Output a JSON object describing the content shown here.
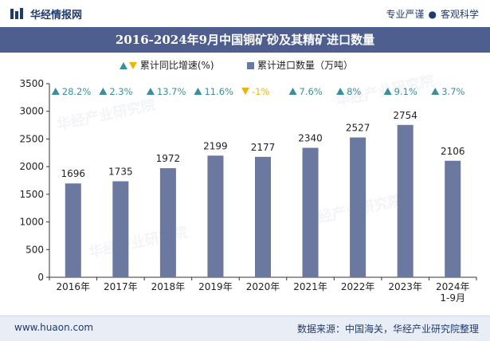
{
  "header": {
    "brand": "华经情报网",
    "tagline_left": "专业严谨",
    "tagline_sep": "●",
    "tagline_right": "客观科学"
  },
  "legend": {
    "growth_label": "累计同比增速(%)",
    "volume_label": "累计进口数量（万吨）"
  },
  "footer": {
    "site": "www.huaon.com",
    "source": "数据来源：中国海关，华经产业研究院整理"
  },
  "watermark": "华经产业研究院",
  "colors": {
    "bar": "#6b789f",
    "title_bg": "#4e5e8e",
    "up": "#3a8f9d",
    "down": "#f0b400"
  },
  "chart_data": {
    "type": "bar",
    "title": "2016-2024年9月中国铜矿砂及其精矿进口数量",
    "categories": [
      "2016年",
      "2017年",
      "2018年",
      "2019年",
      "2020年",
      "2021年",
      "2022年",
      "2023年",
      "2024年\n1-9月"
    ],
    "series": [
      {
        "name": "累计进口数量（万吨）",
        "values": [
          1696,
          1735,
          1972,
          2199,
          2177,
          2340,
          2527,
          2754,
          2106
        ]
      },
      {
        "name": "累计同比增速(%)",
        "values": [
          28.2,
          2.3,
          13.7,
          11.6,
          -1,
          7.6,
          8,
          9.1,
          3.7
        ]
      }
    ],
    "growth_labels": [
      "28.2%",
      "2.3%",
      "13.7%",
      "11.6%",
      "-1%",
      "7.6%",
      "8%",
      "9.1%",
      "3.7%"
    ],
    "ylim": [
      0,
      3500
    ],
    "yticks": [
      0,
      500,
      1000,
      1500,
      2000,
      2500,
      3000,
      3500
    ],
    "grid": false,
    "legend_position": "top-center"
  }
}
